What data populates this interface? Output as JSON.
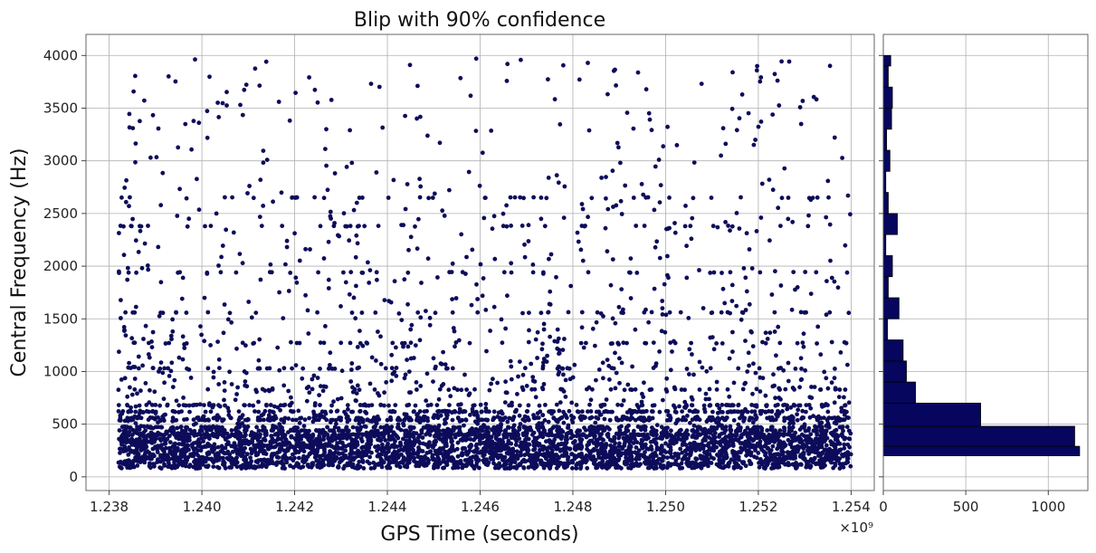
{
  "chart_data": [
    {
      "type": "scatter",
      "title": "Blip with 90% confidence",
      "xlabel": "GPS Time (seconds)",
      "ylabel": "Central Frequency (Hz)",
      "x_offset_text": "×10⁹",
      "xlim": [
        1.2375,
        1.2545
      ],
      "ylim": [
        -130,
        4200
      ],
      "xticks": [
        1.238,
        1.24,
        1.242,
        1.244,
        1.246,
        1.248,
        1.25,
        1.252,
        1.254
      ],
      "xtick_labels": [
        "1.238",
        "1.240",
        "1.242",
        "1.244",
        "1.246",
        "1.248",
        "1.250",
        "1.252",
        "1.254"
      ],
      "yticks": [
        0,
        500,
        1000,
        1500,
        2000,
        2500,
        3000,
        3500,
        4000
      ],
      "ytick_labels": [
        "0",
        "500",
        "1000",
        "1500",
        "2000",
        "2500",
        "3000",
        "3500",
        "4000"
      ],
      "grid": true,
      "marker_color": "#0c0c5a",
      "x_range": [
        1.2382,
        1.254
      ],
      "density_by_frequency_band": [
        {
          "y_min": 80,
          "y_max": 200,
          "relative_density": 1.0
        },
        {
          "y_min": 200,
          "y_max": 300,
          "relative_density": 0.98
        },
        {
          "y_min": 300,
          "y_max": 420,
          "relative_density": 0.9
        },
        {
          "y_min": 420,
          "y_max": 480,
          "relative_density": 0.45
        },
        {
          "y_min": 480,
          "y_max": 620,
          "relative_density": 0.25
        },
        {
          "y_min": 620,
          "y_max": 900,
          "relative_density": 0.09
        },
        {
          "y_min": 900,
          "y_max": 1100,
          "relative_density": 0.07
        },
        {
          "y_min": 1100,
          "y_max": 1700,
          "relative_density": 0.04
        },
        {
          "y_min": 1700,
          "y_max": 2500,
          "relative_density": 0.025
        },
        {
          "y_min": 2500,
          "y_max": 4000,
          "relative_density": 0.015
        }
      ],
      "frequency_stripes": [
        400,
        440,
        470,
        540,
        560,
        620,
        680,
        830,
        1030,
        1270,
        1560,
        1940,
        2380,
        2650
      ]
    },
    {
      "type": "bar",
      "orientation": "horizontal",
      "xlim": [
        0,
        1240
      ],
      "xticks": [
        0,
        500,
        1000
      ],
      "xtick_labels": [
        "0",
        "500",
        "1000"
      ],
      "grid": true,
      "bar_color": "#06065e",
      "bins": [
        {
          "y0": 200,
          "y1": 290,
          "count": 1190
        },
        {
          "y0": 290,
          "y1": 380,
          "count": 20
        },
        {
          "y0": 290,
          "y1": 480,
          "count": 1160
        },
        {
          "y0": 480,
          "y1": 700,
          "count": 590
        },
        {
          "y0": 700,
          "y1": 900,
          "count": 195
        },
        {
          "y0": 900,
          "y1": 1100,
          "count": 140
        },
        {
          "y0": 1100,
          "y1": 1300,
          "count": 120
        },
        {
          "y0": 1300,
          "y1": 1500,
          "count": 25
        },
        {
          "y0": 1500,
          "y1": 1700,
          "count": 95
        },
        {
          "y0": 1700,
          "y1": 1900,
          "count": 30
        },
        {
          "y0": 1900,
          "y1": 2100,
          "count": 55
        },
        {
          "y0": 2100,
          "y1": 2300,
          "count": 15
        },
        {
          "y0": 2300,
          "y1": 2500,
          "count": 85
        },
        {
          "y0": 2500,
          "y1": 2700,
          "count": 30
        },
        {
          "y0": 2700,
          "y1": 2900,
          "count": 15
        },
        {
          "y0": 2900,
          "y1": 3100,
          "count": 40
        },
        {
          "y0": 3100,
          "y1": 3300,
          "count": 20
        },
        {
          "y0": 3300,
          "y1": 3500,
          "count": 50
        },
        {
          "y0": 3500,
          "y1": 3700,
          "count": 55
        },
        {
          "y0": 3700,
          "y1": 3900,
          "count": 30
        },
        {
          "y0": 3900,
          "y1": 4000,
          "count": 45
        }
      ]
    }
  ]
}
